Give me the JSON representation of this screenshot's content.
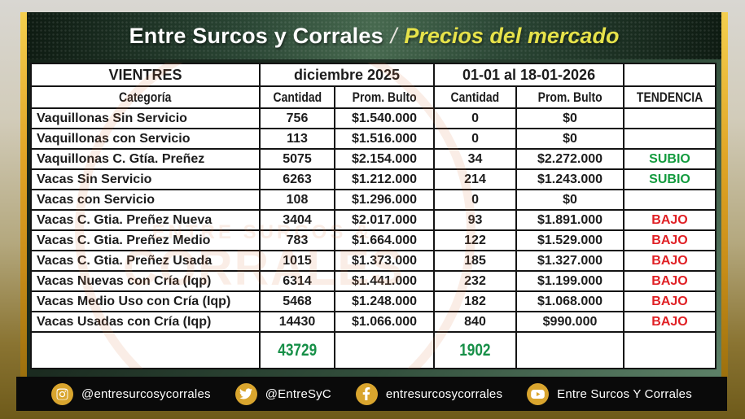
{
  "banner": {
    "title_main": "Entre Surcos y Corrales",
    "separator": "/",
    "title_accent": "Precios del mercado"
  },
  "table": {
    "group_header": {
      "col1": "VIENTRES",
      "period1": "diciembre 2025",
      "period2": "01-01 al 18-01-2026",
      "trend_spacer": ""
    },
    "columns": {
      "category": "Categoría",
      "qty1": "Cantidad",
      "avg1": "Prom. Bulto",
      "qty2": "Cantidad",
      "avg2": "Prom. Bulto",
      "trend": "TENDENCIA"
    },
    "rows": [
      {
        "category": "Vaquillonas Sin Servicio",
        "qty_dec": "756",
        "avg_dec": "$1.540.000",
        "qty_jan": "0",
        "avg_jan": "$0",
        "trend": ""
      },
      {
        "category": "Vaquillonas con Servicio",
        "qty_dec": "113",
        "avg_dec": "$1.516.000",
        "qty_jan": "0",
        "avg_jan": "$0",
        "trend": ""
      },
      {
        "category": "Vaquillonas C. Gtía. Preñez",
        "qty_dec": "5075",
        "avg_dec": "$2.154.000",
        "qty_jan": "34",
        "avg_jan": "$2.272.000",
        "trend": "SUBIO"
      },
      {
        "category": "Vacas Sin Servicio",
        "qty_dec": "6263",
        "avg_dec": "$1.212.000",
        "qty_jan": "214",
        "avg_jan": "$1.243.000",
        "trend": "SUBIO"
      },
      {
        "category": "Vacas con Servicio",
        "qty_dec": "108",
        "avg_dec": "$1.296.000",
        "qty_jan": "0",
        "avg_jan": "$0",
        "trend": ""
      },
      {
        "category": "Vacas C. Gtia. Preñez Nueva",
        "qty_dec": "3404",
        "avg_dec": "$2.017.000",
        "qty_jan": "93",
        "avg_jan": "$1.891.000",
        "trend": "BAJO"
      },
      {
        "category": "Vacas C. Gtia. Preñez Medio",
        "qty_dec": "783",
        "avg_dec": "$1.664.000",
        "qty_jan": "122",
        "avg_jan": "$1.529.000",
        "trend": "BAJO"
      },
      {
        "category": "Vacas C. Gtia. Preñez Usada",
        "qty_dec": "1015",
        "avg_dec": "$1.373.000",
        "qty_jan": "185",
        "avg_jan": "$1.327.000",
        "trend": "BAJO"
      },
      {
        "category": "Vacas Nuevas con Cría (Iqp)",
        "qty_dec": "6314",
        "avg_dec": "$1.441.000",
        "qty_jan": "232",
        "avg_jan": "$1.199.000",
        "trend": "BAJO"
      },
      {
        "category": "Vacas Medio Uso con Cría (Iqp)",
        "qty_dec": "5468",
        "avg_dec": "$1.248.000",
        "qty_jan": "182",
        "avg_jan": "$1.068.000",
        "trend": "BAJO"
      },
      {
        "category": "Vacas Usadas con Cría (Iqp)",
        "qty_dec": "14430",
        "avg_dec": "$1.066.000",
        "qty_jan": "840",
        "avg_jan": "$990.000",
        "trend": "BAJO"
      }
    ],
    "totals": {
      "qty_dec": "43729",
      "qty_jan": "1902"
    }
  },
  "watermark": {
    "line1": "ENTRE SURCOS &",
    "line2": "CORRALES"
  },
  "footer": {
    "items": [
      {
        "platform": "instagram",
        "icon": "instagram-icon",
        "label": "@entresurcosycorrales"
      },
      {
        "platform": "twitter",
        "icon": "twitter-icon",
        "label": "@EntreSyC"
      },
      {
        "platform": "facebook",
        "icon": "facebook-icon",
        "label": "entresurcosycorrales"
      },
      {
        "platform": "youtube",
        "icon": "youtube-icon",
        "label": "Entre Surcos Y Corrales"
      }
    ]
  },
  "colors": {
    "accent_gold": "#d9a52e",
    "banner_accent_text": "#e6e24a",
    "trend_up": "#139b3e",
    "trend_down": "#e02025",
    "totals_green": "#168f47",
    "panel_green_dark": "#142218",
    "panel_green_light": "#5d8168"
  }
}
